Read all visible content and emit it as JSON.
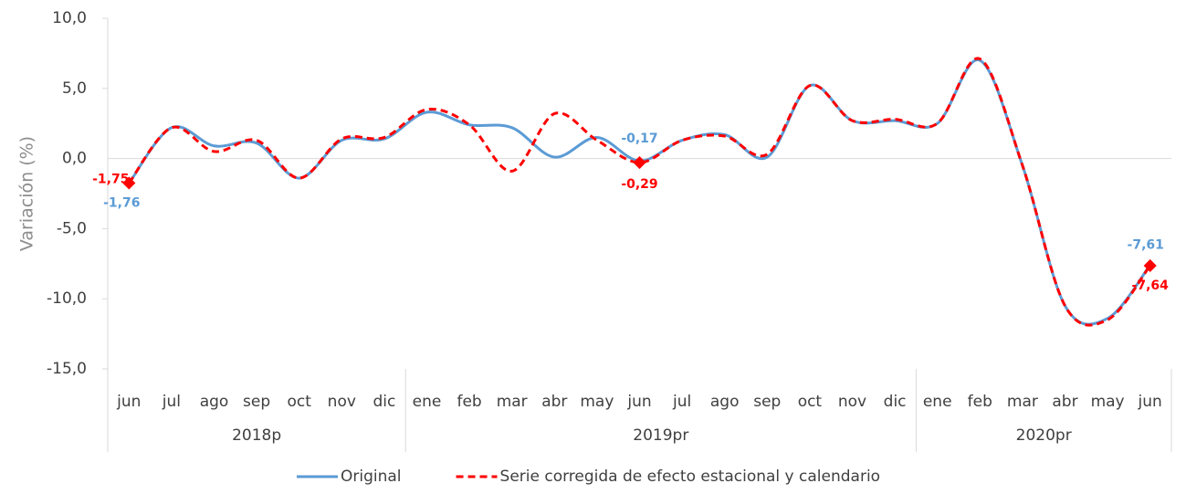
{
  "chart_data": {
    "type": "line",
    "y_label": "Variación (%)",
    "categories": [
      "jun",
      "jul",
      "ago",
      "sep",
      "oct",
      "nov",
      "dic",
      "ene",
      "feb",
      "mar",
      "abr",
      "may",
      "jun",
      "jul",
      "ago",
      "sep",
      "oct",
      "nov",
      "dic",
      "ene",
      "feb",
      "mar",
      "abr",
      "may",
      "jun"
    ],
    "groups": [
      {
        "label": "2018p",
        "count": 7
      },
      {
        "label": "2019pr",
        "count": 12
      },
      {
        "label": "2020pr",
        "count": 6
      }
    ],
    "series": [
      {
        "name": "Original",
        "color": "#5b9bd5",
        "dash": false,
        "values": [
          -1.76,
          2.2,
          0.9,
          1.1,
          -1.4,
          1.3,
          1.4,
          3.3,
          2.4,
          2.2,
          0.1,
          1.5,
          -0.17,
          1.3,
          1.7,
          0.1,
          5.2,
          2.7,
          2.7,
          2.5,
          7.0,
          -0.5,
          -10.5,
          -11.4,
          -7.61
        ],
        "value_labels": [
          "-1,76",
          null,
          null,
          null,
          null,
          null,
          null,
          null,
          null,
          null,
          null,
          null,
          "-0,17",
          null,
          null,
          null,
          null,
          null,
          null,
          null,
          null,
          null,
          null,
          null,
          "-7,61"
        ]
      },
      {
        "name": "Serie corregida de efecto estacional y calendario",
        "color": "#ff0000",
        "dash": true,
        "values": [
          -1.75,
          2.2,
          0.5,
          1.3,
          -1.4,
          1.4,
          1.5,
          3.5,
          2.4,
          -0.9,
          3.2,
          1.3,
          -0.29,
          1.3,
          1.6,
          0.3,
          5.2,
          2.7,
          2.8,
          2.5,
          7.1,
          -0.5,
          -10.5,
          -11.5,
          -7.64
        ],
        "value_labels": [
          "-1,75",
          null,
          null,
          null,
          null,
          null,
          null,
          null,
          null,
          null,
          null,
          null,
          "-0,29",
          null,
          null,
          null,
          null,
          null,
          null,
          null,
          null,
          null,
          null,
          null,
          "-7,64"
        ]
      }
    ],
    "ylim": [
      -15,
      10
    ],
    "yticks": [
      {
        "value": -15,
        "label": "-15,0"
      },
      {
        "value": -10,
        "label": "-10,0"
      },
      {
        "value": -5,
        "label": "-5,0"
      },
      {
        "value": 0,
        "label": "0,0"
      },
      {
        "value": 5,
        "label": "5,0"
      },
      {
        "value": 10,
        "label": "10,0"
      }
    ],
    "legend": "bottom"
  }
}
